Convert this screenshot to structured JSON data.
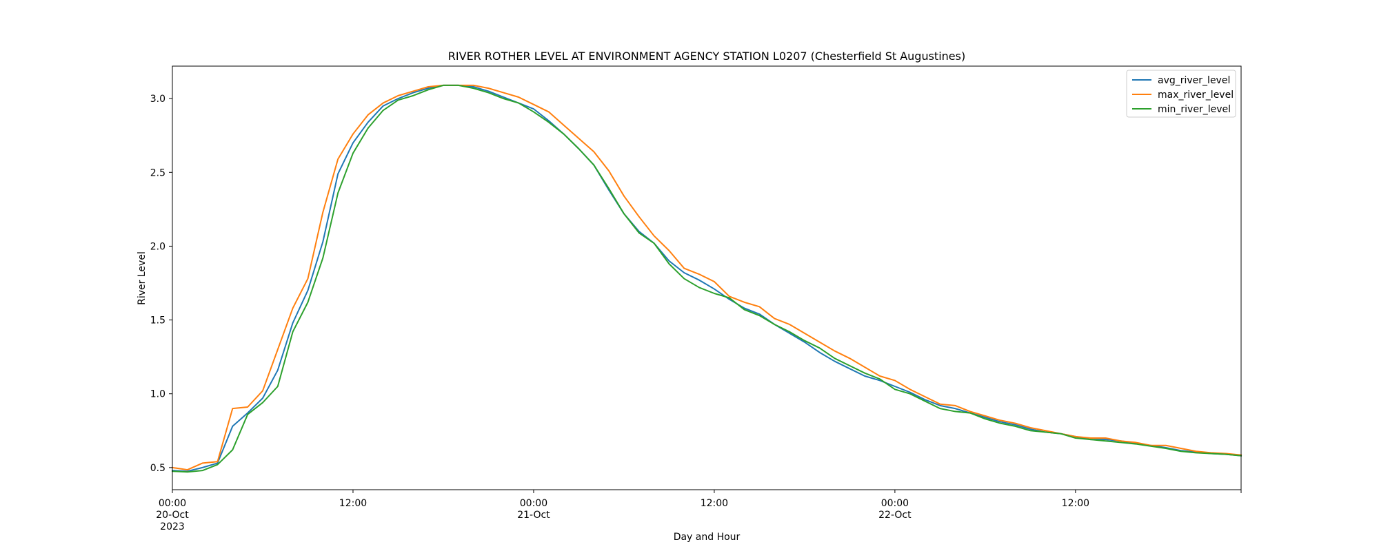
{
  "chart_data": {
    "type": "line",
    "title": "RIVER ROTHER LEVEL AT ENVIRONMENT AGENCY STATION L0207 (Chesterfield St Augustines)",
    "xlabel": "Day and Hour",
    "ylabel": "River Level",
    "xlim": [
      0,
      71
    ],
    "ylim": [
      0.35,
      3.22
    ],
    "grid": false,
    "legend_position": "top-right",
    "y_ticks": [
      0.5,
      1.0,
      1.5,
      2.0,
      2.5,
      3.0
    ],
    "y_tick_labels": [
      "0.5",
      "1.0",
      "1.5",
      "2.0",
      "2.5",
      "3.0"
    ],
    "x_ticks": [
      {
        "hour": 0,
        "label": [
          "00:00",
          "20-Oct",
          "2023"
        ]
      },
      {
        "hour": 12,
        "label": [
          "12:00"
        ]
      },
      {
        "hour": 24,
        "label": [
          "00:00",
          "21-Oct"
        ]
      },
      {
        "hour": 36,
        "label": [
          "12:00"
        ]
      },
      {
        "hour": 48,
        "label": [
          "00:00",
          "22-Oct"
        ]
      },
      {
        "hour": 60,
        "label": [
          "12:00"
        ]
      }
    ],
    "x_start": "2023-10-20 00:00",
    "x_step": "1h",
    "series": [
      {
        "name": "avg_river_level",
        "color": "#1f77b4",
        "values": [
          0.48,
          0.475,
          0.5,
          0.53,
          0.78,
          0.87,
          0.97,
          1.16,
          1.48,
          1.7,
          2.03,
          2.49,
          2.7,
          2.84,
          2.95,
          3.0,
          3.04,
          3.07,
          3.09,
          3.09,
          3.08,
          3.05,
          3.01,
          2.97,
          2.93,
          2.85,
          2.76,
          2.66,
          2.55,
          2.38,
          2.22,
          2.1,
          2.02,
          1.9,
          1.82,
          1.77,
          1.71,
          1.64,
          1.58,
          1.54,
          1.47,
          1.41,
          1.35,
          1.28,
          1.22,
          1.17,
          1.12,
          1.09,
          1.05,
          1.01,
          0.96,
          0.92,
          0.9,
          0.87,
          0.84,
          0.81,
          0.79,
          0.76,
          0.74,
          0.73,
          0.71,
          0.69,
          0.69,
          0.68,
          0.665,
          0.65,
          0.635,
          0.615,
          0.605,
          0.595,
          0.59,
          0.58
        ]
      },
      {
        "name": "max_river_level",
        "color": "#ff7f0e",
        "values": [
          0.5,
          0.485,
          0.53,
          0.54,
          0.9,
          0.91,
          1.02,
          1.3,
          1.58,
          1.78,
          2.23,
          2.59,
          2.76,
          2.89,
          2.97,
          3.02,
          3.05,
          3.08,
          3.09,
          3.09,
          3.09,
          3.07,
          3.04,
          3.01,
          2.96,
          2.91,
          2.82,
          2.73,
          2.64,
          2.51,
          2.34,
          2.2,
          2.07,
          1.97,
          1.85,
          1.81,
          1.76,
          1.66,
          1.62,
          1.59,
          1.51,
          1.47,
          1.41,
          1.35,
          1.29,
          1.24,
          1.18,
          1.12,
          1.09,
          1.03,
          0.98,
          0.93,
          0.92,
          0.88,
          0.85,
          0.82,
          0.8,
          0.77,
          0.75,
          0.73,
          0.71,
          0.7,
          0.7,
          0.68,
          0.67,
          0.65,
          0.65,
          0.63,
          0.61,
          0.6,
          0.595,
          0.585
        ]
      },
      {
        "name": "min_river_level",
        "color": "#2ca02c",
        "values": [
          0.475,
          0.47,
          0.48,
          0.52,
          0.62,
          0.86,
          0.94,
          1.05,
          1.42,
          1.62,
          1.92,
          2.36,
          2.63,
          2.8,
          2.92,
          2.99,
          3.02,
          3.06,
          3.09,
          3.09,
          3.07,
          3.04,
          3.0,
          2.97,
          2.91,
          2.84,
          2.76,
          2.66,
          2.55,
          2.39,
          2.22,
          2.09,
          2.02,
          1.88,
          1.78,
          1.72,
          1.68,
          1.65,
          1.57,
          1.53,
          1.47,
          1.42,
          1.36,
          1.31,
          1.24,
          1.19,
          1.14,
          1.1,
          1.03,
          1.0,
          0.95,
          0.9,
          0.88,
          0.87,
          0.83,
          0.8,
          0.78,
          0.75,
          0.74,
          0.73,
          0.7,
          0.69,
          0.68,
          0.67,
          0.66,
          0.645,
          0.63,
          0.61,
          0.6,
          0.595,
          0.59,
          0.58
        ]
      }
    ]
  }
}
